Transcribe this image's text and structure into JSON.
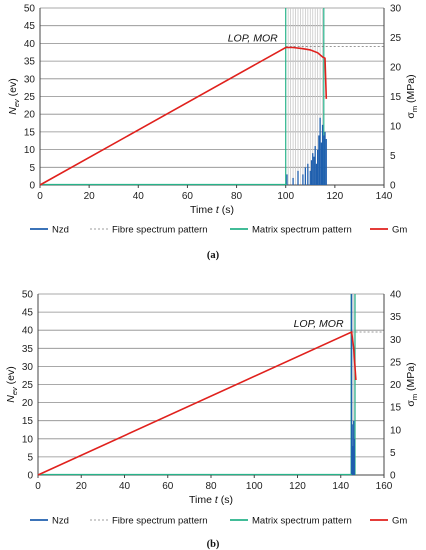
{
  "chart_data": [
    {
      "type": "line",
      "caption": "(a)",
      "xlabel": "Time t (s)",
      "ylabel_left": "N_ev (ev)",
      "ylabel_right": "σ_m (MPa)",
      "xlim": [
        0,
        140
      ],
      "ylim_left": [
        0,
        50
      ],
      "ylim_right": [
        0,
        30
      ],
      "xticks": [
        0,
        20,
        40,
        60,
        80,
        100,
        120,
        140
      ],
      "yticks_left": [
        0,
        5,
        10,
        15,
        20,
        25,
        30,
        35,
        40,
        45,
        50
      ],
      "yticks_right": [
        0,
        5,
        10,
        15,
        20,
        25,
        30
      ],
      "grid": true,
      "legend_position": "bottom",
      "annotation": {
        "text": "LOP, MOR",
        "x": 100,
        "y": 23.5
      },
      "series": [
        {
          "name": "Nzd",
          "color": "#1f5fae",
          "axis": "left",
          "style": "spikes",
          "x": [
            100.5,
            103,
            105,
            107,
            108,
            109,
            110,
            110.5,
            111,
            111.5,
            112,
            112.5,
            113,
            113.5,
            114,
            114.5,
            115,
            115.5,
            116,
            116.5
          ],
          "values": [
            3,
            2,
            4,
            3,
            5,
            6,
            4,
            7,
            9,
            8,
            11,
            6,
            10,
            14,
            19,
            12,
            17,
            14,
            15,
            13
          ]
        },
        {
          "name": "Fibre spectrum pattern",
          "color": "#c8c8c8",
          "axis": "left",
          "style": "vlines",
          "x": [
            101,
            102,
            103,
            104,
            105,
            106,
            107,
            108,
            109,
            110,
            111,
            112,
            113,
            114,
            115
          ],
          "values": [
            50,
            50,
            50,
            50,
            50,
            50,
            50,
            50,
            50,
            50,
            50,
            50,
            50,
            50,
            50
          ]
        },
        {
          "name": "Matrix spectrum pattern",
          "color": "#27b38a",
          "axis": "left",
          "style": "vlines",
          "x": [
            100,
            115.5
          ],
          "values": [
            50,
            50
          ]
        },
        {
          "name": "Gm",
          "color": "#e0211d",
          "axis": "right",
          "style": "line",
          "x": [
            0,
            100,
            103,
            107,
            110,
            113,
            115,
            116,
            116.5
          ],
          "values": [
            0,
            23.3,
            23.3,
            23.1,
            22.9,
            22.4,
            21.7,
            21.5,
            14.6
          ]
        }
      ]
    },
    {
      "type": "line",
      "caption": "(b)",
      "xlabel": "Time t (s)",
      "ylabel_left": "N_ev (ev)",
      "ylabel_right": "σ_m (MPa)",
      "xlim": [
        0,
        160
      ],
      "ylim_left": [
        0,
        50
      ],
      "ylim_right": [
        0,
        40
      ],
      "xticks": [
        0,
        20,
        40,
        60,
        80,
        100,
        120,
        140,
        160
      ],
      "yticks_left": [
        0,
        5,
        10,
        15,
        20,
        25,
        30,
        35,
        40,
        45,
        50
      ],
      "yticks_right": [
        0,
        5,
        10,
        15,
        20,
        25,
        30,
        35,
        40
      ],
      "grid": true,
      "legend_position": "bottom",
      "annotation": {
        "text": "LOP, MOR",
        "x": 145,
        "y": 31.6
      },
      "series": [
        {
          "name": "Nzd",
          "color": "#1f5fae",
          "axis": "left",
          "style": "spikes",
          "x": [
            145,
            145.3,
            145.6,
            146,
            146.3
          ],
          "values": [
            50,
            14,
            8,
            15,
            10
          ]
        },
        {
          "name": "Fibre spectrum pattern",
          "color": "#c8c8c8",
          "axis": "left",
          "style": "vlines",
          "x": [
            145.2,
            145.8,
            146.4
          ],
          "values": [
            50,
            50,
            50
          ]
        },
        {
          "name": "Matrix spectrum pattern",
          "color": "#27b38a",
          "axis": "left",
          "style": "vlines",
          "x": [
            144.8,
            146.6
          ],
          "values": [
            50,
            50
          ]
        },
        {
          "name": "Gm",
          "color": "#e0211d",
          "axis": "right",
          "style": "line",
          "x": [
            0,
            145,
            146,
            147
          ],
          "values": [
            0,
            31.6,
            28,
            21
          ]
        }
      ]
    }
  ]
}
